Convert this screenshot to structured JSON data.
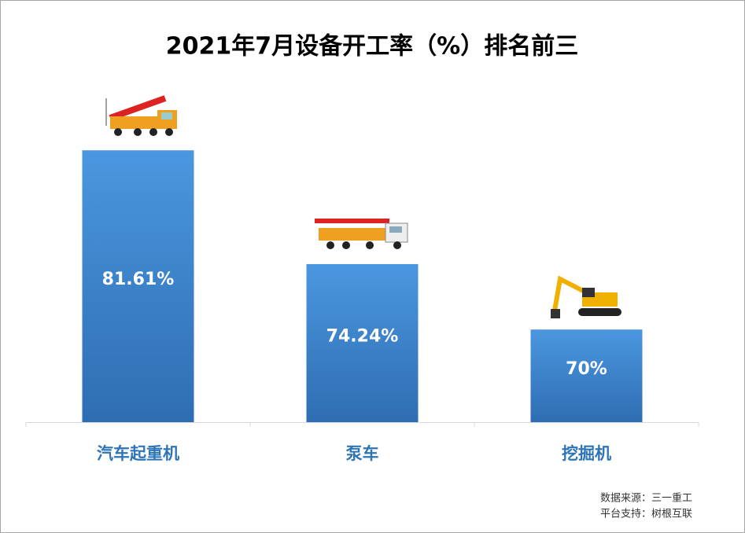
{
  "chart_data": {
    "type": "bar",
    "title": "2021年7月设备开工率（%）排名前三",
    "categories": [
      "汽车起重机",
      "泵车",
      "挖掘机"
    ],
    "values": [
      81.61,
      74.24,
      70
    ],
    "value_labels": [
      "81.61%",
      "74.24%",
      "70%"
    ],
    "color": "#3f87d2",
    "ylim": [
      64,
      86
    ],
    "source": "数据来源：三一重工",
    "platform": "平台支持：树根互联"
  }
}
